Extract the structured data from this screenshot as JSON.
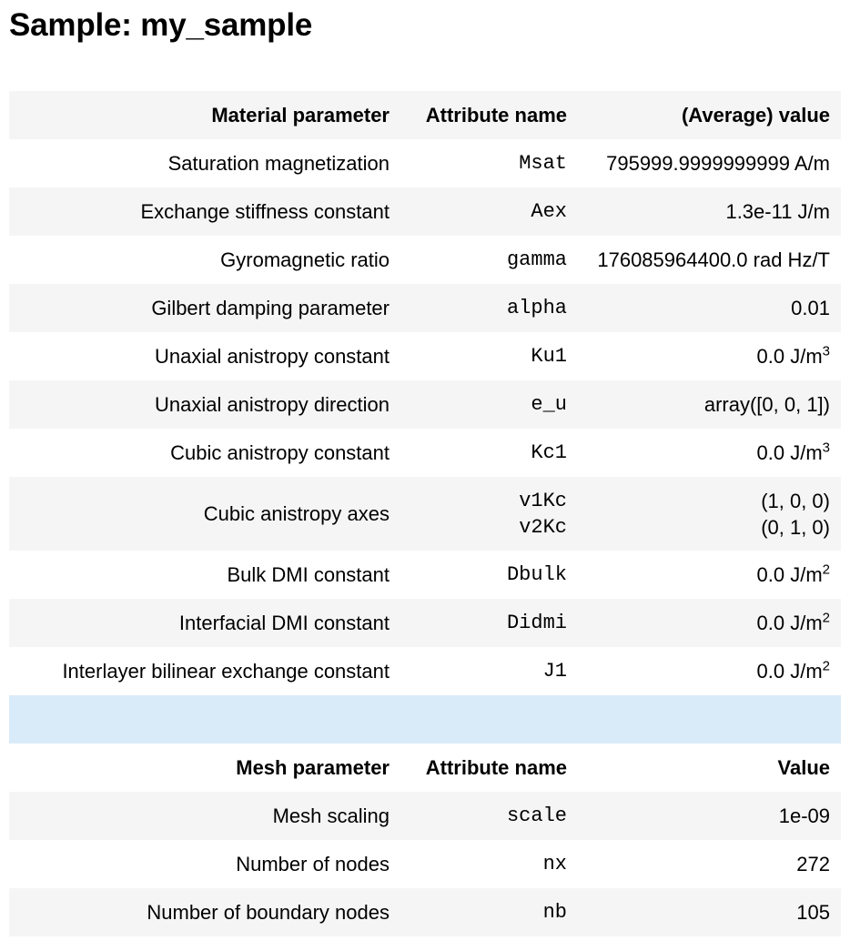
{
  "title": "Sample: my_sample",
  "material": {
    "headers": {
      "param": "Material parameter",
      "attr": "Attribute name",
      "value": "(Average) value"
    },
    "rows": [
      {
        "param": "Saturation magnetization",
        "attr": "Msat",
        "value": "795999.9999999999 A/m"
      },
      {
        "param": "Exchange stiffness constant",
        "attr": "Aex",
        "value": "1.3e-11 J/m"
      },
      {
        "param": "Gyromagnetic ratio",
        "attr": "gamma",
        "value": "176085964400.0 rad Hz/T"
      },
      {
        "param": "Gilbert damping parameter",
        "attr": "alpha",
        "value": "0.01"
      },
      {
        "param": "Unaxial anistropy constant",
        "attr": "Ku1",
        "value": "0.0 J/m",
        "sup": "3"
      },
      {
        "param": "Unaxial anistropy direction",
        "attr": "e_u",
        "value": "array([0, 0, 1])"
      },
      {
        "param": "Cubic anistropy constant",
        "attr": "Kc1",
        "value": "0.0 J/m",
        "sup": "3"
      },
      {
        "param": "Cubic anistropy axes",
        "attr1": "v1Kc",
        "attr2": "v2Kc",
        "value1": "(1, 0, 0)",
        "value2": "(0, 1, 0)"
      },
      {
        "param": "Bulk DMI constant",
        "attr": "Dbulk",
        "value": "0.0 J/m",
        "sup": "2"
      },
      {
        "param": "Interfacial DMI constant",
        "attr": "Didmi",
        "value": "0.0 J/m",
        "sup": "2"
      },
      {
        "param": "Interlayer bilinear exchange constant",
        "attr": "J1",
        "value": "0.0 J/m",
        "sup": "2"
      }
    ]
  },
  "mesh": {
    "headers": {
      "param": "Mesh parameter",
      "attr": "Attribute name",
      "value": "Value"
    },
    "rows": [
      {
        "param": "Mesh scaling",
        "attr": "scale",
        "value": "1e-09"
      },
      {
        "param": "Number of nodes",
        "attr": "nx",
        "value": "272"
      },
      {
        "param": "Number of boundary nodes",
        "attr": "nb",
        "value": "105"
      }
    ]
  }
}
